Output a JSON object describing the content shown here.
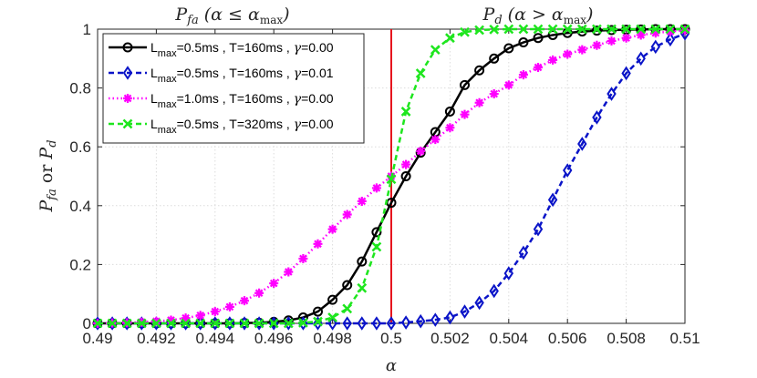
{
  "chart_data": {
    "type": "line",
    "xlabel": "α",
    "ylabel": {
      "p1": "P",
      "s1": "fa",
      "mid": " or ",
      "p2": "P",
      "s2": "d"
    },
    "region_labels": {
      "left": {
        "main": "P",
        "sub": "fa",
        "cond": "(α ≤ α",
        "condsub": "max",
        "close": ")"
      },
      "right": {
        "main": "P",
        "sub": "d",
        "cond": "(α > α",
        "condsub": "max",
        "close": ")"
      }
    },
    "xlim": [
      0.49,
      0.51
    ],
    "ylim": [
      0,
      1
    ],
    "x_ticks": [
      "0.49",
      "0.492",
      "0.494",
      "0.496",
      "0.498",
      "0.5",
      "0.502",
      "0.504",
      "0.506",
      "0.508",
      "0.51"
    ],
    "y_ticks": [
      "0",
      "0.2",
      "0.4",
      "0.6",
      "0.8",
      "1"
    ],
    "threshold_x": 0.5,
    "threshold_color": "#e6141e",
    "x": [
      0.49,
      0.4905,
      0.491,
      0.4915,
      0.492,
      0.4925,
      0.493,
      0.4935,
      0.494,
      0.4945,
      0.495,
      0.4955,
      0.496,
      0.4965,
      0.497,
      0.4975,
      0.498,
      0.4985,
      0.499,
      0.4995,
      0.5,
      0.5005,
      0.501,
      0.5015,
      0.502,
      0.5025,
      0.503,
      0.5035,
      0.504,
      0.5045,
      0.505,
      0.5055,
      0.506,
      0.5065,
      0.507,
      0.5075,
      0.508,
      0.5085,
      0.509,
      0.5095,
      0.51
    ],
    "grid": true,
    "legend_position": "top-left",
    "series": [
      {
        "name": "L_max=0.5ms , T=160ms , γ=0.00",
        "legend": {
          "pre": "L",
          "sub": "max",
          "post": "=0.5ms , T=160ms , ",
          "sym": "γ",
          "end": "=0.00"
        },
        "color": "#000000",
        "dash": "",
        "marker": "circle",
        "values": [
          0,
          0,
          0,
          0,
          0,
          0,
          0,
          0,
          0,
          0,
          0.001,
          0.002,
          0.005,
          0.01,
          0.02,
          0.04,
          0.08,
          0.13,
          0.21,
          0.31,
          0.41,
          0.5,
          0.58,
          0.65,
          0.72,
          0.81,
          0.86,
          0.9,
          0.935,
          0.955,
          0.97,
          0.98,
          0.987,
          0.992,
          0.995,
          0.997,
          0.998,
          0.999,
          1,
          1,
          1
        ]
      },
      {
        "name": "L_max=0.5ms , T=160ms , γ=0.01",
        "legend": {
          "pre": "L",
          "sub": "max",
          "post": "=0.5ms , T=160ms , ",
          "sym": "γ",
          "end": "=0.01"
        },
        "color": "#0a14c8",
        "dash": "6 4",
        "marker": "diamond",
        "values": [
          0,
          0,
          0,
          0,
          0,
          0,
          0,
          0,
          0,
          0,
          0,
          0,
          0,
          0,
          0,
          0,
          0,
          0,
          0,
          0,
          0,
          0.003,
          0.007,
          0.012,
          0.02,
          0.04,
          0.07,
          0.11,
          0.17,
          0.24,
          0.32,
          0.42,
          0.52,
          0.61,
          0.7,
          0.78,
          0.85,
          0.9,
          0.94,
          0.965,
          0.985
        ]
      },
      {
        "name": "L_max=1.0ms , T=160ms , γ=0.00",
        "legend": {
          "pre": "L",
          "sub": "max",
          "post": "=1.0ms , T=160ms , ",
          "sym": "γ",
          "end": "=0.00"
        },
        "color": "#ff00ff",
        "dash": "1.5 3",
        "marker": "asterisk",
        "values": [
          0,
          0.001,
          0.002,
          0.004,
          0.007,
          0.011,
          0.018,
          0.027,
          0.04,
          0.056,
          0.077,
          0.103,
          0.136,
          0.175,
          0.22,
          0.27,
          0.32,
          0.37,
          0.415,
          0.46,
          0.5,
          0.54,
          0.585,
          0.625,
          0.665,
          0.71,
          0.75,
          0.78,
          0.81,
          0.845,
          0.87,
          0.895,
          0.915,
          0.93,
          0.945,
          0.96,
          0.97,
          0.98,
          0.987,
          0.992,
          0.996
        ]
      },
      {
        "name": "L_max=0.5ms , T=320ms , γ=0.00",
        "legend": {
          "pre": "L",
          "sub": "max",
          "post": "=0.5ms , T=320ms , ",
          "sym": "γ",
          "end": "=0.00"
        },
        "color": "#1ee61e",
        "dash": "6 4",
        "marker": "x",
        "values": [
          0,
          0,
          0,
          0,
          0,
          0,
          0,
          0,
          0,
          0,
          0,
          0,
          0,
          0,
          0.002,
          0.006,
          0.02,
          0.05,
          0.12,
          0.26,
          0.49,
          0.72,
          0.85,
          0.93,
          0.97,
          0.99,
          0.997,
          0.999,
          1,
          1,
          1,
          1,
          1,
          1,
          1,
          1,
          1,
          1,
          1,
          1,
          1
        ]
      }
    ]
  }
}
